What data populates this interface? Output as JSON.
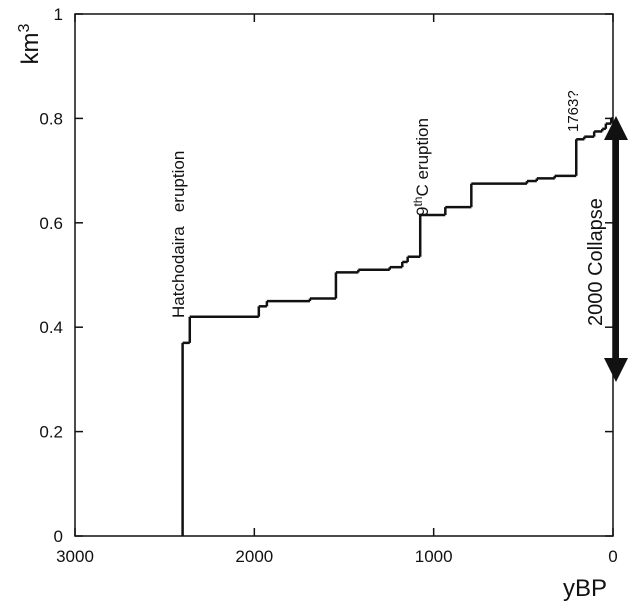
{
  "chart_data": {
    "type": "step",
    "y_label": [
      "km",
      "3"
    ],
    "x_label": "yBP",
    "x": [
      2400,
      2400,
      2360,
      1975,
      1930,
      1690,
      1545,
      1420,
      1245,
      1175,
      1145,
      1075,
      935,
      790,
      480,
      425,
      325,
      205,
      160,
      105,
      60,
      40,
      10,
      0
    ],
    "values": [
      0,
      0.37,
      0.42,
      0.44,
      0.45,
      0.455,
      0.505,
      0.51,
      0.515,
      0.525,
      0.535,
      0.615,
      0.63,
      0.675,
      0.68,
      0.685,
      0.69,
      0.76,
      0.765,
      0.775,
      0.78,
      0.79,
      0.8,
      0.8
    ],
    "color": "#111111",
    "xlim": [
      3000,
      0
    ],
    "ylim": [
      0,
      1
    ],
    "xticks": [
      3000,
      2000,
      1000,
      0
    ],
    "yticks": [
      0,
      0.2,
      0.4,
      0.6,
      0.8,
      1
    ],
    "annotations": {
      "hatchodaira": "Hatchodaira   eruption",
      "ninth": [
        "9",
        "th",
        "C eruption"
      ],
      "y1763": "1763?",
      "collapse": "2000 Collapse"
    }
  }
}
